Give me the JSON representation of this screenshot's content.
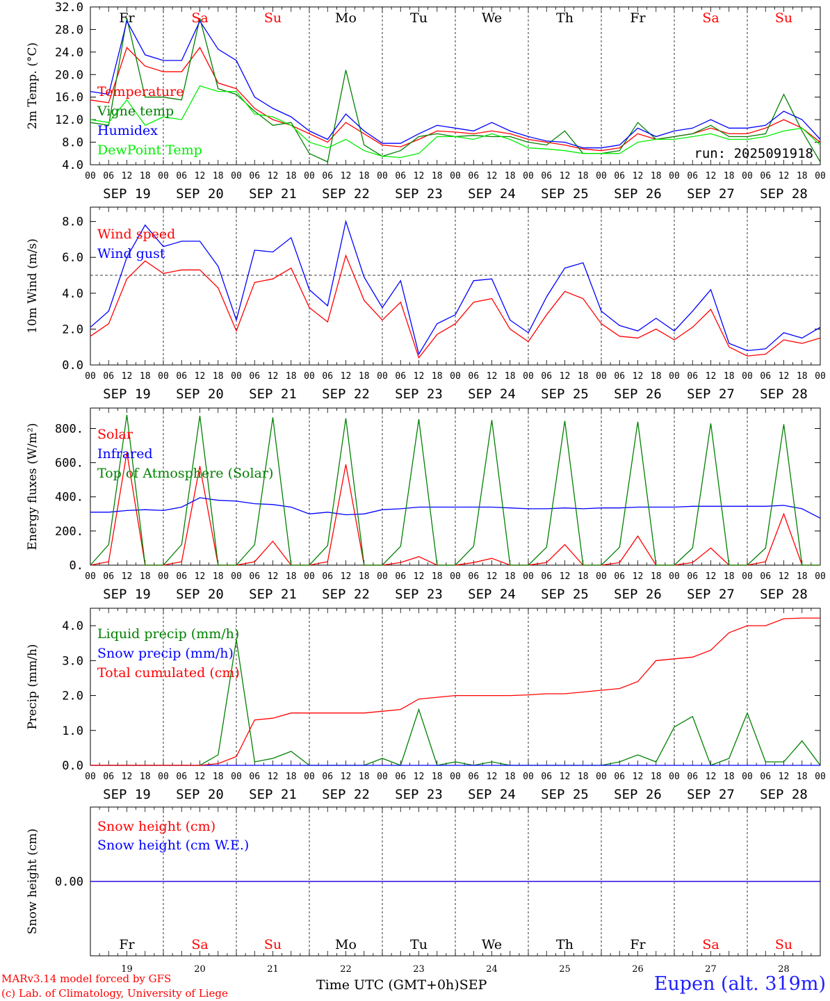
{
  "station": "Eupen (alt. 319m)",
  "model_credit": "MARv3.14 model forced by GFS",
  "lab_credit": "(c) Lab. of Climatology, University of Liege",
  "time_axis_label": "Time UTC (GMT+0h)",
  "month_label": "SEP",
  "run_label": "run: 2025091918",
  "days": [
    {
      "dow": "Fr",
      "date": "SEP 19",
      "num": "19",
      "weekend": false
    },
    {
      "dow": "Sa",
      "date": "SEP 20",
      "num": "20",
      "weekend": true
    },
    {
      "dow": "Su",
      "date": "SEP 21",
      "num": "21",
      "weekend": true
    },
    {
      "dow": "Mo",
      "date": "SEP 22",
      "num": "22",
      "weekend": false
    },
    {
      "dow": "Tu",
      "date": "SEP 23",
      "num": "23",
      "weekend": false
    },
    {
      "dow": "We",
      "date": "SEP 24",
      "num": "24",
      "weekend": false
    },
    {
      "dow": "Th",
      "date": "SEP 25",
      "num": "25",
      "weekend": false
    },
    {
      "dow": "Fr",
      "date": "SEP 26",
      "num": "26",
      "weekend": false
    },
    {
      "dow": "Sa",
      "date": "SEP 27",
      "num": "27",
      "weekend": true
    },
    {
      "dow": "Su",
      "date": "SEP 28",
      "num": "28",
      "weekend": true
    }
  ],
  "hour_ticks": [
    "00",
    "06",
    "12",
    "18"
  ],
  "colors": {
    "red": "#ff0000",
    "green": "#008000",
    "blue": "#0000ff",
    "lightgreen": "#00ee00",
    "grid": "#000000"
  },
  "chart_data": [
    {
      "type": "line",
      "ylabel": "2m Temp. (°C)",
      "ylim": [
        4,
        32
      ],
      "yticks": [
        "4.0",
        "8.0",
        "12.0",
        "16.0",
        "20.0",
        "24.0",
        "28.0",
        "32.0"
      ],
      "ytick_values": [
        4,
        8,
        12,
        16,
        20,
        24,
        28,
        32
      ],
      "x_unit": "hours since SEP 19 00 UTC",
      "x": [
        0,
        6,
        12,
        18,
        24,
        30,
        36,
        42,
        48,
        54,
        60,
        66,
        72,
        78,
        84,
        90,
        96,
        102,
        108,
        114,
        120,
        126,
        132,
        138,
        144,
        150,
        156,
        162,
        168,
        174,
        180,
        186,
        192,
        198,
        204,
        210,
        216,
        222,
        228,
        234,
        240
      ],
      "series": [
        {
          "name": "Temperature",
          "color": "#ff0000",
          "values": [
            15.5,
            15.0,
            24.8,
            21.5,
            20.5,
            20.5,
            24.8,
            18.5,
            17.5,
            14.0,
            12.0,
            11.0,
            9.5,
            8.0,
            11.5,
            9.5,
            7.5,
            7.2,
            8.5,
            10.0,
            9.8,
            9.5,
            10.0,
            9.5,
            8.5,
            8.0,
            7.5,
            6.8,
            6.5,
            7.0,
            9.5,
            8.5,
            9.0,
            9.5,
            10.5,
            9.5,
            9.5,
            10.5,
            12.0,
            10.5,
            8.0
          ]
        },
        {
          "name": "Vigne temp",
          "color": "#008000",
          "values": [
            11.5,
            11.0,
            30.0,
            16.0,
            16.0,
            15.5,
            30.0,
            17.5,
            16.5,
            13.5,
            11.0,
            11.5,
            6.0,
            4.5,
            20.8,
            7.5,
            5.5,
            6.5,
            9.0,
            9.5,
            9.0,
            9.2,
            9.0,
            9.0,
            8.0,
            7.5,
            10.0,
            6.0,
            6.0,
            6.5,
            11.5,
            8.5,
            9.0,
            9.5,
            11.0,
            9.0,
            9.0,
            9.5,
            16.5,
            10.0,
            4.5
          ]
        },
        {
          "name": "Humidex",
          "color": "#0000ff",
          "values": [
            17.0,
            16.5,
            29.5,
            23.5,
            22.5,
            22.5,
            29.5,
            24.5,
            22.5,
            16.0,
            14.0,
            12.5,
            10.0,
            8.5,
            13.0,
            10.0,
            7.8,
            7.8,
            9.5,
            11.0,
            10.5,
            10.0,
            11.5,
            10.0,
            9.0,
            8.2,
            8.0,
            7.0,
            7.0,
            7.5,
            10.5,
            9.0,
            10.0,
            10.5,
            12.0,
            10.5,
            10.5,
            11.0,
            13.5,
            12.0,
            8.5
          ]
        },
        {
          "name": "DewPoint Temp",
          "color": "#00ee00",
          "values": [
            12.0,
            11.5,
            15.5,
            11.0,
            12.5,
            12.0,
            18.0,
            17.0,
            17.0,
            13.0,
            12.5,
            11.0,
            8.0,
            7.0,
            8.5,
            6.5,
            5.5,
            5.3,
            6.0,
            9.0,
            9.0,
            8.5,
            9.5,
            8.5,
            7.0,
            6.8,
            6.5,
            6.0,
            6.0,
            6.0,
            8.0,
            8.5,
            8.5,
            9.0,
            9.5,
            8.5,
            8.5,
            9.0,
            10.0,
            10.5,
            7.5
          ]
        }
      ]
    },
    {
      "type": "line",
      "ylabel": "10m Wind (m/s)",
      "ylim": [
        0,
        8.8
      ],
      "yticks": [
        "0.0",
        "2.0",
        "4.0",
        "6.0",
        "8.0"
      ],
      "ytick_values": [
        0,
        2,
        4,
        6,
        8
      ],
      "reference_line": 5.0,
      "x": [
        0,
        6,
        12,
        18,
        24,
        30,
        36,
        42,
        48,
        54,
        60,
        66,
        72,
        78,
        84,
        90,
        96,
        102,
        108,
        114,
        120,
        126,
        132,
        138,
        144,
        150,
        156,
        162,
        168,
        174,
        180,
        186,
        192,
        198,
        204,
        210,
        216,
        222,
        228,
        234,
        240
      ],
      "series": [
        {
          "name": "Wind speed",
          "color": "#ff0000",
          "values": [
            1.6,
            2.3,
            4.8,
            5.8,
            5.1,
            5.3,
            5.3,
            4.3,
            1.9,
            4.6,
            4.8,
            5.4,
            3.2,
            2.4,
            6.1,
            3.6,
            2.5,
            3.5,
            0.4,
            1.7,
            2.3,
            3.5,
            3.7,
            2.0,
            1.3,
            2.8,
            4.1,
            3.7,
            2.3,
            1.6,
            1.5,
            2.0,
            1.4,
            2.1,
            3.1,
            1.0,
            0.5,
            0.6,
            1.4,
            1.2,
            1.5
          ]
        },
        {
          "name": "Wind gust",
          "color": "#0000ff",
          "values": [
            2.1,
            3.0,
            6.0,
            7.8,
            6.6,
            6.9,
            6.9,
            5.5,
            2.5,
            6.4,
            6.3,
            7.1,
            4.2,
            3.3,
            8.0,
            4.9,
            3.2,
            4.7,
            0.6,
            2.3,
            2.8,
            4.7,
            4.8,
            2.5,
            1.8,
            3.8,
            5.4,
            5.7,
            3.0,
            2.2,
            1.9,
            2.6,
            1.9,
            3.0,
            4.2,
            1.2,
            0.8,
            0.9,
            1.8,
            1.5,
            2.1
          ]
        }
      ]
    },
    {
      "type": "line",
      "ylabel": "Energy fluxes (W/m²)",
      "ylim": [
        0,
        920
      ],
      "yticks": [
        "0.",
        "200.",
        "400.",
        "600.",
        "800."
      ],
      "ytick_values": [
        0,
        200,
        400,
        600,
        800
      ],
      "x": [
        0,
        6,
        12,
        18,
        24,
        30,
        36,
        42,
        48,
        54,
        60,
        66,
        72,
        78,
        84,
        90,
        96,
        102,
        108,
        114,
        120,
        126,
        132,
        138,
        144,
        150,
        156,
        162,
        168,
        174,
        180,
        186,
        192,
        198,
        204,
        210,
        216,
        222,
        228,
        234,
        240
      ],
      "series": [
        {
          "name": "Solar",
          "color": "#ff0000",
          "values": [
            0,
            20,
            660,
            0,
            0,
            20,
            580,
            0,
            0,
            20,
            140,
            0,
            0,
            20,
            590,
            0,
            0,
            15,
            50,
            0,
            0,
            15,
            40,
            0,
            0,
            15,
            120,
            0,
            0,
            15,
            170,
            0,
            0,
            15,
            100,
            0,
            0,
            20,
            300,
            0,
            0
          ]
        },
        {
          "name": "Infrared",
          "color": "#0000ff",
          "values": [
            310,
            310,
            320,
            325,
            320,
            340,
            395,
            380,
            375,
            360,
            355,
            340,
            300,
            310,
            295,
            300,
            325,
            330,
            340,
            340,
            340,
            340,
            340,
            335,
            330,
            330,
            335,
            330,
            335,
            335,
            340,
            340,
            340,
            345,
            345,
            345,
            345,
            345,
            350,
            330,
            275
          ]
        },
        {
          "name": "Top of Atmosphere (Solar)",
          "color": "#008000",
          "values": [
            0,
            120,
            880,
            0,
            0,
            120,
            875,
            0,
            0,
            120,
            865,
            0,
            0,
            115,
            860,
            0,
            0,
            110,
            855,
            0,
            0,
            110,
            850,
            0,
            0,
            105,
            845,
            0,
            0,
            105,
            840,
            0,
            0,
            100,
            830,
            0,
            0,
            100,
            825,
            0,
            0
          ]
        }
      ]
    },
    {
      "type": "line",
      "ylabel": "Precip (mm/h)",
      "ylim": [
        0,
        4.5
      ],
      "yticks": [
        "0.0",
        "1.0",
        "2.0",
        "3.0",
        "4.0"
      ],
      "ytick_values": [
        0,
        1,
        2,
        3,
        4
      ],
      "x": [
        0,
        6,
        12,
        18,
        24,
        30,
        36,
        42,
        48,
        54,
        60,
        66,
        72,
        78,
        84,
        90,
        96,
        102,
        108,
        114,
        120,
        126,
        132,
        138,
        144,
        150,
        156,
        162,
        168,
        174,
        180,
        186,
        192,
        198,
        204,
        210,
        216,
        222,
        228,
        234,
        240
      ],
      "series": [
        {
          "name": "Liquid precip (mm/h)",
          "color": "#008000",
          "values": [
            0,
            0,
            0,
            0,
            0,
            0,
            0,
            0.3,
            3.6,
            0.1,
            0.2,
            0.4,
            0,
            0,
            0,
            0,
            0.2,
            0,
            1.6,
            0,
            0.1,
            0,
            0.1,
            0,
            0,
            0,
            0,
            0,
            0,
            0.1,
            0.3,
            0.1,
            1.1,
            1.4,
            0,
            0.2,
            1.5,
            0.1,
            0.1,
            0.7,
            0
          ]
        },
        {
          "name": "Snow precip (mm/h)",
          "color": "#0000ff",
          "values": [
            0,
            0,
            0,
            0,
            0,
            0,
            0,
            0,
            0,
            0,
            0,
            0,
            0,
            0,
            0,
            0,
            0,
            0,
            0,
            0,
            0,
            0,
            0,
            0,
            0,
            0,
            0,
            0,
            0,
            0,
            0,
            0,
            0,
            0,
            0,
            0,
            0,
            0,
            0,
            0,
            0
          ]
        },
        {
          "name": "Total cumulated (cm)",
          "color": "#ff0000",
          "values": [
            0,
            0,
            0,
            0,
            0,
            0,
            0,
            0.05,
            0.25,
            1.3,
            1.35,
            1.5,
            1.5,
            1.5,
            1.5,
            1.5,
            1.55,
            1.6,
            1.9,
            1.95,
            2.0,
            2.0,
            2.0,
            2.0,
            2.02,
            2.05,
            2.05,
            2.1,
            2.15,
            2.2,
            2.4,
            3.0,
            3.05,
            3.1,
            3.3,
            3.8,
            4.0,
            4.0,
            4.2,
            4.22,
            4.22
          ]
        }
      ]
    },
    {
      "type": "line",
      "ylabel": "Snow height (cm)",
      "ylim": [
        -1,
        1
      ],
      "yticks": [
        "0.00"
      ],
      "ytick_values": [
        0
      ],
      "x": [
        0,
        240
      ],
      "series": [
        {
          "name": "Snow height (cm)",
          "color": "#ff0000",
          "values": [
            0,
            0
          ]
        },
        {
          "name": "Snow height (cm W.E.)",
          "color": "#0000ff",
          "values": [
            0,
            0
          ]
        }
      ]
    }
  ]
}
